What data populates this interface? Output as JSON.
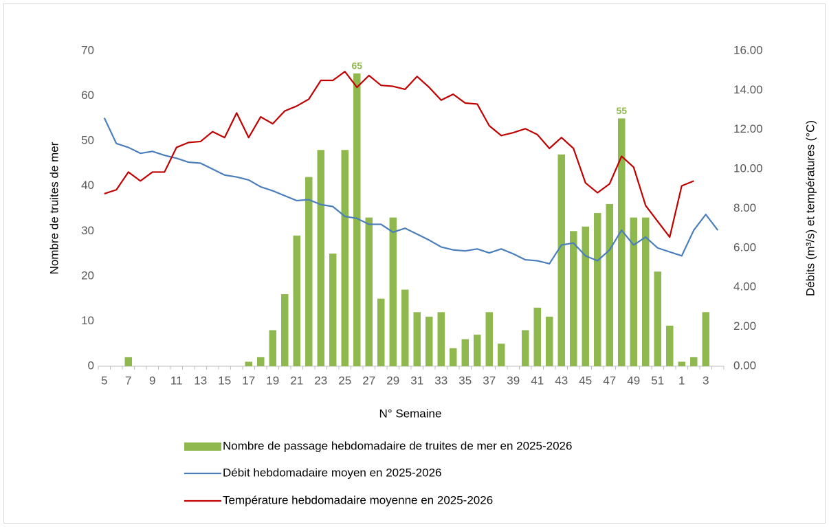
{
  "chart_data": {
    "type": "bar_line",
    "x_label": "N° Semaine",
    "y_label": "Nombre de truites de mer",
    "y2_label": "Débits (m³/s) et températures (°C)",
    "categories": [
      "5",
      null,
      "7",
      null,
      "9",
      null,
      "11",
      null,
      "13",
      null,
      "15",
      null,
      "17",
      null,
      "19",
      null,
      "21",
      null,
      "23",
      null,
      "25",
      null,
      "27",
      null,
      "29",
      null,
      "31",
      null,
      "33",
      null,
      "35",
      null,
      "37",
      null,
      "39",
      null,
      "41",
      null,
      "43",
      null,
      "45",
      null,
      "47",
      null,
      "49",
      null,
      "51",
      null,
      "1",
      null,
      "3",
      null
    ],
    "ylim": [
      0,
      70
    ],
    "yticks": [
      0,
      10,
      20,
      30,
      40,
      50,
      60,
      70
    ],
    "y2lim": [
      0,
      16
    ],
    "y2ticks": [
      {
        "value": 0,
        "label": "0.00"
      },
      {
        "value": 2,
        "label": "2.00"
      },
      {
        "value": 4,
        "label": "4.00"
      },
      {
        "value": 6,
        "label": "6.00"
      },
      {
        "value": 8,
        "label": "8.00"
      },
      {
        "value": 10,
        "label": "10.00"
      },
      {
        "value": 12,
        "label": "12.00"
      },
      {
        "value": 14,
        "label": "14.00"
      },
      {
        "value": 16,
        "label": "16.00"
      }
    ],
    "grid": false,
    "legend": "bottom",
    "series": [
      {
        "name": "Nombre de passage hebdomadaire de truites de mer en 2025-2026",
        "kind": "bar",
        "color": "#8fb84e",
        "values": [
          0,
          0,
          2,
          0,
          0,
          0,
          0,
          0,
          0,
          0,
          0,
          0,
          1,
          2,
          8,
          16,
          29,
          42,
          48,
          25,
          48,
          65,
          33,
          15,
          33,
          17,
          12,
          11,
          12,
          4,
          6,
          7,
          12,
          5,
          0,
          8,
          13,
          11,
          47,
          30,
          31,
          34,
          36,
          55,
          33,
          33,
          21,
          9,
          1,
          2,
          12,
          0
        ],
        "value_labels": [
          null,
          null,
          null,
          null,
          null,
          null,
          null,
          null,
          null,
          null,
          null,
          null,
          null,
          null,
          null,
          null,
          null,
          null,
          null,
          null,
          null,
          "65",
          null,
          null,
          null,
          null,
          null,
          null,
          null,
          null,
          null,
          null,
          null,
          null,
          null,
          null,
          null,
          null,
          null,
          null,
          null,
          null,
          null,
          "55",
          null,
          null,
          null,
          null,
          null,
          null,
          null,
          null
        ]
      },
      {
        "name": "Débit hebdomadaire moyen en 2025-2026",
        "kind": "line",
        "axis": "y2",
        "color": "#4a7ebb",
        "values": [
          12.6,
          11.3,
          11.1,
          10.8,
          10.9,
          10.7,
          10.55,
          10.35,
          10.3,
          10.0,
          9.7,
          9.6,
          9.45,
          9.1,
          8.9,
          8.65,
          8.4,
          8.45,
          8.2,
          8.1,
          7.6,
          7.5,
          7.2,
          7.2,
          6.8,
          7.0,
          6.7,
          6.4,
          6.05,
          5.9,
          5.85,
          5.95,
          5.75,
          5.95,
          5.7,
          5.4,
          5.35,
          5.2,
          6.15,
          6.25,
          5.6,
          5.35,
          5.9,
          6.9,
          6.15,
          6.55,
          6.0,
          5.8,
          5.6,
          6.9,
          7.7,
          6.9
        ]
      },
      {
        "name": "Température hebdomadaire moyenne en 2025-2026",
        "kind": "line",
        "axis": "y2",
        "color": "#c00000",
        "values": [
          8.75,
          8.95,
          9.85,
          9.4,
          9.85,
          9.85,
          11.1,
          11.35,
          11.4,
          11.9,
          11.6,
          12.85,
          11.6,
          12.65,
          12.3,
          12.95,
          13.2,
          13.55,
          14.5,
          14.5,
          14.95,
          14.15,
          14.75,
          14.25,
          14.2,
          14.05,
          14.7,
          14.15,
          13.5,
          13.8,
          13.35,
          13.3,
          12.2,
          11.7,
          11.85,
          12.05,
          11.75,
          11.05,
          11.6,
          11.05,
          9.3,
          8.8,
          9.25,
          10.65,
          10.1,
          8.15,
          7.35,
          6.55,
          9.15,
          9.4,
          null,
          null
        ]
      }
    ]
  }
}
